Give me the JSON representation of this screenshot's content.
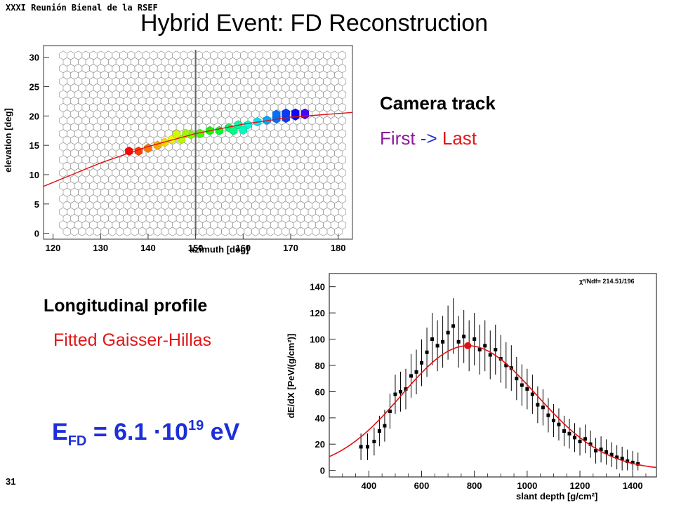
{
  "header": {
    "conference": "XXXI Reunión Bienal de la RSEF",
    "title": "Hybrid Event: FD Reconstruction"
  },
  "slide": {
    "page_number": "31"
  },
  "camera_label": {
    "title": "Camera track",
    "first": "First",
    "arrow": "->",
    "last": "Last",
    "first_color": "#8a1a9a",
    "arrow_color": "#1c2fd8",
    "last_color": "#e01818"
  },
  "profile_label": {
    "title": "Longitudinal profile",
    "subtitle": "Fitted Gaisser-Hillas"
  },
  "energy": {
    "symbol": "E",
    "subscript": "FD",
    "equals": "= 6.1 ·10",
    "exponent": "19",
    "unit": "eV",
    "color": "#1c2fd8"
  },
  "chart_data": [
    {
      "type": "scatter",
      "xlabel": "azimuth  [deg]",
      "ylabel": "elevation  [deg]",
      "xlim": [
        118,
        183
      ],
      "ylim": [
        -1,
        32
      ],
      "xticks": [
        120,
        130,
        140,
        150,
        160,
        170,
        180
      ],
      "yticks": [
        0,
        5,
        10,
        15,
        20,
        25,
        30
      ],
      "series": [
        {
          "points": [
            [
              136,
              14
            ],
            [
              138,
              14
            ],
            [
              140,
              14.5
            ],
            [
              142,
              15
            ],
            [
              143.5,
              15.5
            ],
            [
              145,
              16
            ],
            [
              147,
              16
            ],
            [
              149,
              16.8
            ],
            [
              151,
              17
            ],
            [
              153,
              17.5
            ],
            [
              155,
              17.5
            ],
            [
              157,
              18
            ],
            [
              159,
              18.5
            ],
            [
              161,
              18.5
            ],
            [
              163,
              19
            ],
            [
              165,
              19.3
            ],
            [
              167,
              19.5
            ],
            [
              169,
              19.6
            ],
            [
              171,
              20
            ],
            [
              173,
              20.2
            ],
            [
              167,
              20.3
            ],
            [
              169,
              20.5
            ],
            [
              171,
              20.5
            ],
            [
              173,
              20.5
            ],
            [
              158,
              17.5
            ],
            [
              160,
              17.6
            ],
            [
              146,
              16.9
            ],
            [
              148,
              17
            ]
          ]
        }
      ],
      "fit_line": [
        [
          118,
          8
        ],
        [
          130,
          12
        ],
        [
          140,
          14.8
        ],
        [
          150,
          17
        ],
        [
          160,
          18.6
        ],
        [
          170,
          19.8
        ],
        [
          183,
          20.6
        ]
      ]
    },
    {
      "type": "scatter",
      "xlabel": "slant depth [g/cm²]",
      "ylabel": "dE/dX [PeV/(g/cm²)]",
      "annotation": "χ²/Ndf= 214.51/196",
      "xlim": [
        250,
        1490
      ],
      "ylim": [
        -5,
        150
      ],
      "xticks": [
        400,
        600,
        800,
        1000,
        1200,
        1400
      ],
      "yticks": [
        0,
        20,
        40,
        60,
        80,
        100,
        120,
        140
      ],
      "series": [
        {
          "points": [
            [
              370,
              18
            ],
            [
              395,
              18
            ],
            [
              420,
              22
            ],
            [
              440,
              30
            ],
            [
              460,
              34
            ],
            [
              480,
              45
            ],
            [
              500,
              58
            ],
            [
              520,
              60
            ],
            [
              540,
              62
            ],
            [
              560,
              72
            ],
            [
              580,
              75
            ],
            [
              600,
              82
            ],
            [
              620,
              90
            ],
            [
              640,
              100
            ],
            [
              660,
              95
            ],
            [
              680,
              98
            ],
            [
              700,
              105
            ],
            [
              720,
              110
            ],
            [
              740,
              98
            ],
            [
              760,
              102
            ],
            [
              780,
              95
            ],
            [
              800,
              100
            ],
            [
              820,
              92
            ],
            [
              840,
              95
            ],
            [
              860,
              88
            ],
            [
              880,
              92
            ],
            [
              900,
              85
            ],
            [
              920,
              80
            ],
            [
              940,
              78
            ],
            [
              960,
              70
            ],
            [
              980,
              65
            ],
            [
              1000,
              62
            ],
            [
              1020,
              58
            ],
            [
              1040,
              50
            ],
            [
              1060,
              48
            ],
            [
              1080,
              42
            ],
            [
              1100,
              38
            ],
            [
              1120,
              35
            ],
            [
              1140,
              30
            ],
            [
              1160,
              28
            ],
            [
              1180,
              25
            ],
            [
              1200,
              22
            ],
            [
              1220,
              24
            ],
            [
              1240,
              20
            ],
            [
              1260,
              15
            ],
            [
              1280,
              16
            ],
            [
              1300,
              14
            ],
            [
              1320,
              12
            ],
            [
              1340,
              10
            ],
            [
              1360,
              9
            ],
            [
              1380,
              7
            ],
            [
              1400,
              6
            ],
            [
              1420,
              5
            ]
          ]
        }
      ],
      "fit": {
        "type": "Gaisser-Hillas",
        "xmax": 775,
        "peak": 95
      }
    }
  ]
}
